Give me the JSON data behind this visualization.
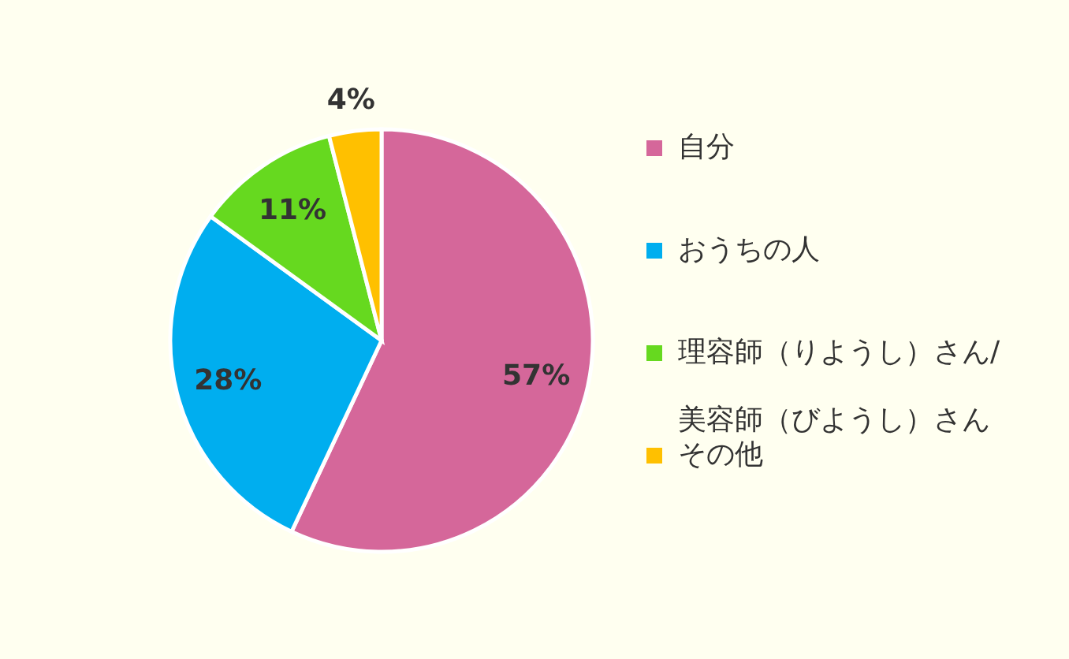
{
  "chart_data": {
    "type": "pie",
    "categories": [
      "自分",
      "おうちの人",
      "理容師（りようし）さん/\n美容師（びようし）さん",
      "その他"
    ],
    "values": [
      57,
      28,
      11,
      4
    ],
    "colors": [
      "#d5679a",
      "#00aeef",
      "#66d91f",
      "#ffc000"
    ],
    "value_labels": [
      "57%",
      "28%",
      "11%",
      "4%"
    ],
    "legend": "right"
  }
}
